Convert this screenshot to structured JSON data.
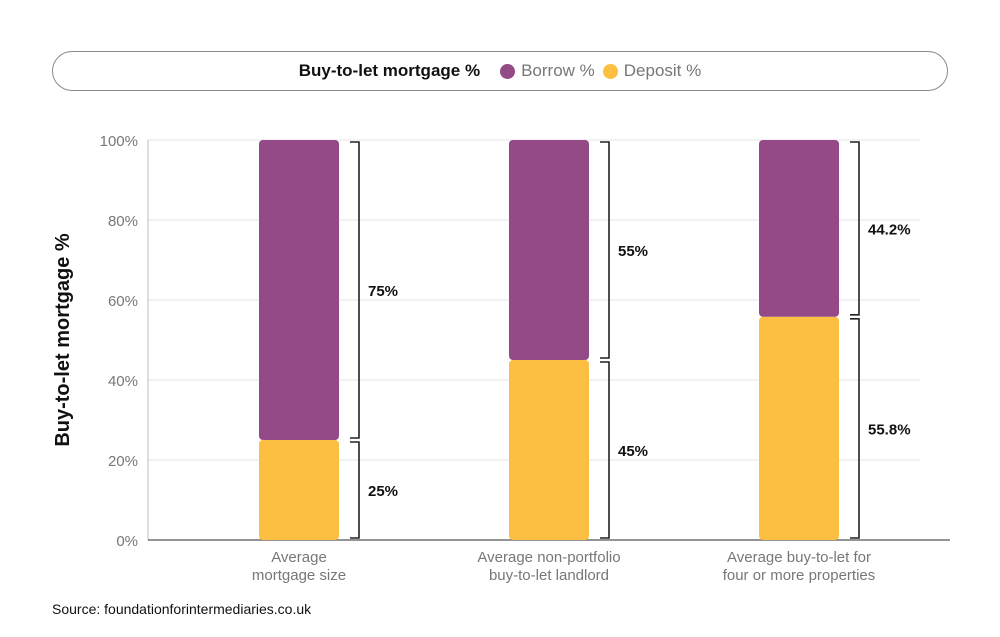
{
  "legend": {
    "title": "Buy-to-let mortgage %",
    "items": [
      {
        "label": "Borrow %",
        "color": "#944a87"
      },
      {
        "label": "Deposit %",
        "color": "#fcbf42"
      }
    ]
  },
  "source": "Source: foundationforintermediaries.co.uk",
  "chart_data": {
    "type": "bar",
    "stacked": true,
    "ylabel": "Buy-to-let mortgage %",
    "xlabel": "",
    "ylim": [
      0,
      100
    ],
    "yticks": [
      0,
      20,
      40,
      60,
      80,
      100
    ],
    "ytick_suffix": "%",
    "grid": true,
    "legend_position": "top",
    "categories": [
      [
        "Average",
        "mortgage size"
      ],
      [
        "Average non-portfolio",
        "buy-to-let landlord"
      ],
      [
        "Average buy-to-let for",
        "four or more properties"
      ]
    ],
    "series": [
      {
        "name": "Deposit %",
        "color": "#fcbf42",
        "values": [
          25,
          45,
          55.8
        ],
        "labels": [
          "25%",
          "45%",
          "55.8%"
        ]
      },
      {
        "name": "Borrow %",
        "color": "#944a87",
        "values": [
          75,
          55,
          44.2
        ],
        "labels": [
          "75%",
          "55%",
          "44.2%"
        ]
      }
    ]
  }
}
